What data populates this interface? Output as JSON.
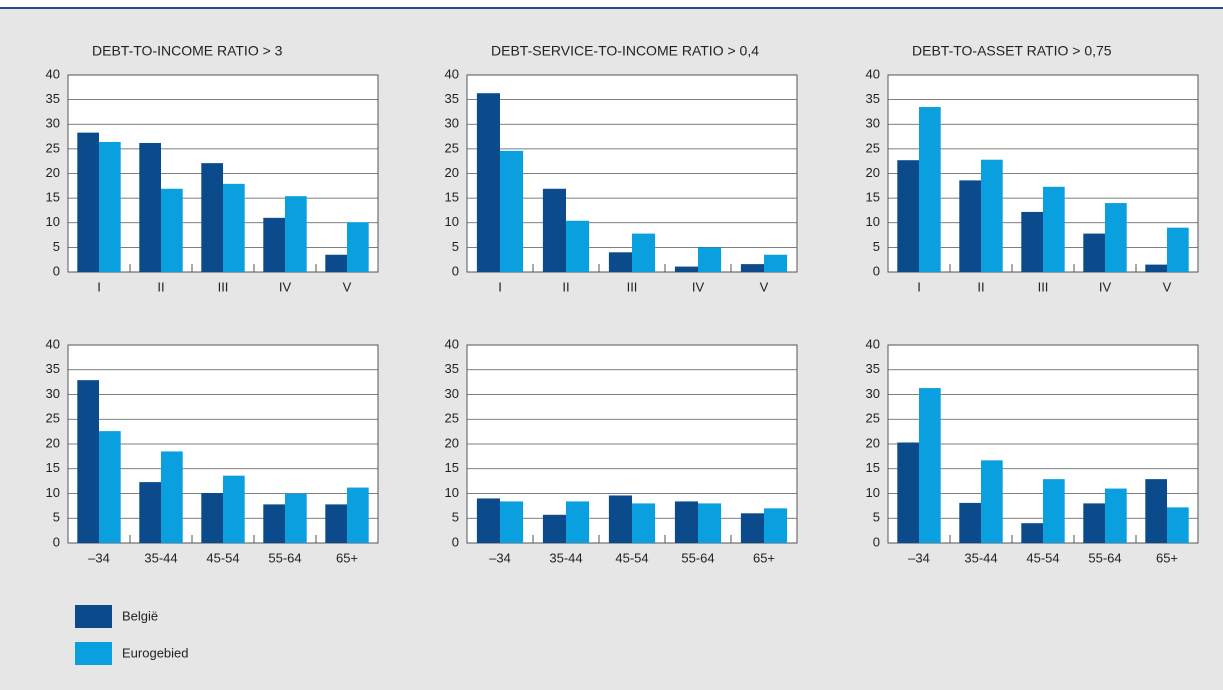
{
  "chart_data": [
    {
      "type": "bar",
      "title": "DEBT-TO-INCOME RATIO > 3",
      "categories": [
        "I",
        "II",
        "III",
        "IV",
        "V"
      ],
      "series": [
        {
          "name": "België",
          "color": "#0b4a8b",
          "values": [
            28.3,
            26.2,
            22.1,
            11,
            3.5
          ]
        },
        {
          "name": "Eurogebied",
          "color": "#0aa0e0",
          "values": [
            26.4,
            16.9,
            17.9,
            15.4,
            10.1
          ]
        }
      ],
      "ylim": [
        0,
        40
      ],
      "yticks": [
        0,
        5,
        10,
        15,
        20,
        25,
        30,
        35,
        40
      ],
      "grid": true
    },
    {
      "type": "bar",
      "title": "DEBT-SERVICE-TO-INCOME RATIO > 0,4",
      "categories": [
        "I",
        "II",
        "III",
        "IV",
        "V"
      ],
      "series": [
        {
          "name": "België",
          "color": "#0b4a8b",
          "values": [
            36.3,
            16.9,
            4,
            1.1,
            1.6
          ]
        },
        {
          "name": "Eurogebied",
          "color": "#0aa0e0",
          "values": [
            24.6,
            10.4,
            7.8,
            5,
            3.5
          ]
        }
      ],
      "ylim": [
        0,
        40
      ],
      "yticks": [
        0,
        5,
        10,
        15,
        20,
        25,
        30,
        35,
        40
      ],
      "grid": true
    },
    {
      "type": "bar",
      "title": "DEBT-TO-ASSET  RATIO > 0,75",
      "categories": [
        "I",
        "II",
        "III",
        "IV",
        "V"
      ],
      "series": [
        {
          "name": "België",
          "color": "#0b4a8b",
          "values": [
            22.7,
            18.6,
            12.2,
            7.8,
            1.5
          ]
        },
        {
          "name": "Eurogebied",
          "color": "#0aa0e0",
          "values": [
            33.5,
            22.8,
            17.3,
            14,
            9
          ]
        }
      ],
      "ylim": [
        0,
        40
      ],
      "yticks": [
        0,
        5,
        10,
        15,
        20,
        25,
        30,
        35,
        40
      ],
      "grid": true
    },
    {
      "type": "bar",
      "categories": [
        "–34",
        "35-44",
        "45-54",
        "55-64",
        "65+"
      ],
      "series": [
        {
          "name": "België",
          "color": "#0b4a8b",
          "values": [
            32.9,
            12.3,
            10.1,
            7.8,
            7.8
          ]
        },
        {
          "name": "Eurogebied",
          "color": "#0aa0e0",
          "values": [
            22.6,
            18.5,
            13.6,
            10,
            11.2
          ]
        }
      ],
      "ylim": [
        0,
        40
      ],
      "yticks": [
        0,
        5,
        10,
        15,
        20,
        25,
        30,
        35,
        40
      ],
      "grid": true
    },
    {
      "type": "bar",
      "categories": [
        "–34",
        "35-44",
        "45-54",
        "55-64",
        "65+"
      ],
      "series": [
        {
          "name": "België",
          "color": "#0b4a8b",
          "values": [
            9,
            5.7,
            9.6,
            8.4,
            6
          ]
        },
        {
          "name": "Eurogebied",
          "color": "#0aa0e0",
          "values": [
            8.4,
            8.4,
            8,
            8,
            7
          ]
        }
      ],
      "ylim": [
        0,
        40
      ],
      "yticks": [
        0,
        5,
        10,
        15,
        20,
        25,
        30,
        35,
        40
      ],
      "grid": true
    },
    {
      "type": "bar",
      "categories": [
        "–34",
        "35-44",
        "45-54",
        "55-64",
        "65+"
      ],
      "series": [
        {
          "name": "België",
          "color": "#0b4a8b",
          "values": [
            20.3,
            8.1,
            4,
            8,
            12.9
          ]
        },
        {
          "name": "Eurogebied",
          "color": "#0aa0e0",
          "values": [
            31.3,
            16.7,
            12.9,
            11,
            7.2
          ]
        }
      ],
      "ylim": [
        0,
        40
      ],
      "yticks": [
        0,
        5,
        10,
        15,
        20,
        25,
        30,
        35,
        40
      ],
      "grid": true
    }
  ]
}
